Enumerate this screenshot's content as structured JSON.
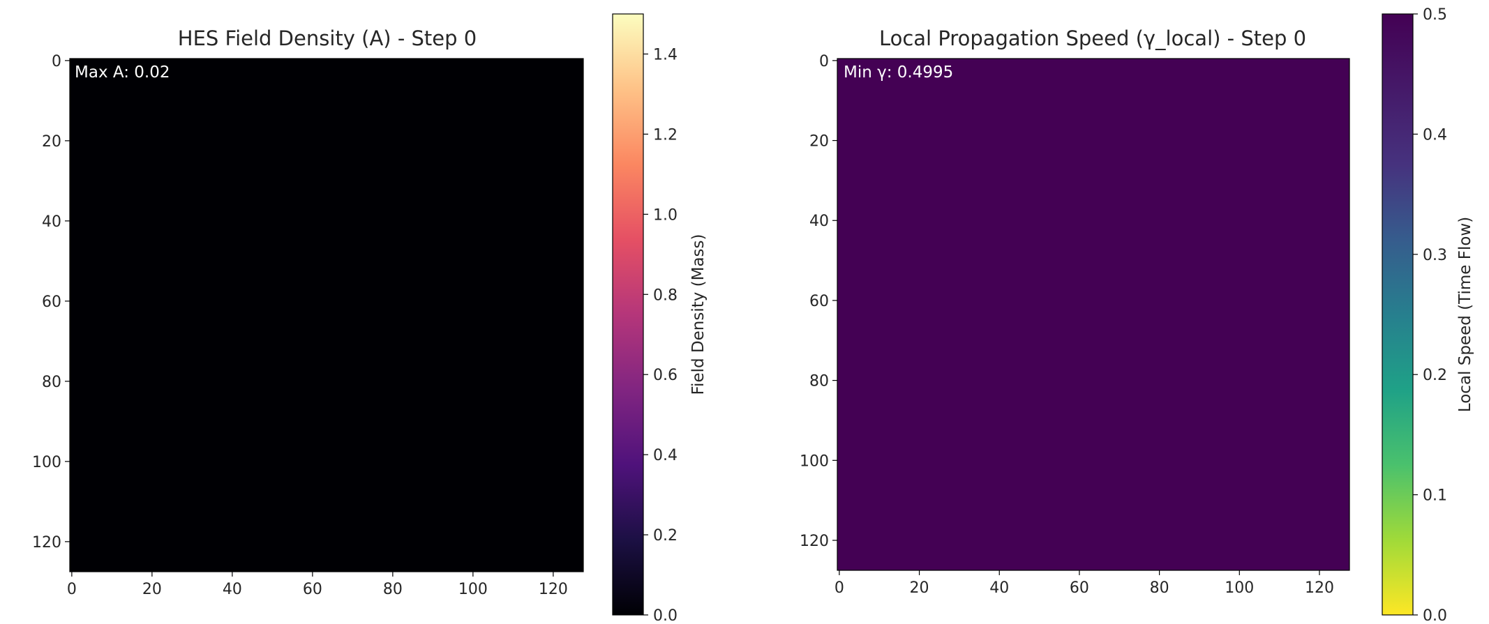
{
  "chart_data": [
    {
      "type": "heatmap",
      "title": "HES Field Density (A) - Step 0",
      "annotation": "Max A: 0.02",
      "grid_size": 128,
      "x_ticks": [
        "0",
        "20",
        "40",
        "60",
        "80",
        "100",
        "120"
      ],
      "y_ticks": [
        "0",
        "20",
        "40",
        "60",
        "80",
        "100",
        "120"
      ],
      "colormap": "magma",
      "field_value": 0.0,
      "max_value": 0.02,
      "colorbar": {
        "label": "Field Density (Mass)",
        "range": [
          0.0,
          1.5
        ],
        "ticks": [
          "0.0",
          "0.2",
          "0.4",
          "0.6",
          "0.8",
          "1.0",
          "1.2",
          "1.4"
        ]
      },
      "colors": {
        "field": "#000004"
      }
    },
    {
      "type": "heatmap",
      "title": "Local Propagation Speed (γ_local) - Step 0",
      "annotation": "Min γ: 0.4995",
      "grid_size": 128,
      "x_ticks": [
        "0",
        "20",
        "40",
        "60",
        "80",
        "100",
        "120"
      ],
      "y_ticks": [
        "0",
        "20",
        "40",
        "60",
        "80",
        "100",
        "120"
      ],
      "colormap": "viridis_r",
      "field_value": 0.5,
      "min_value": 0.4995,
      "colorbar": {
        "label": "Local Speed (Time Flow)",
        "range": [
          0.0,
          0.5
        ],
        "ticks": [
          "0.0",
          "0.1",
          "0.2",
          "0.3",
          "0.4",
          "0.5"
        ]
      },
      "colors": {
        "field": "#440154"
      }
    }
  ]
}
